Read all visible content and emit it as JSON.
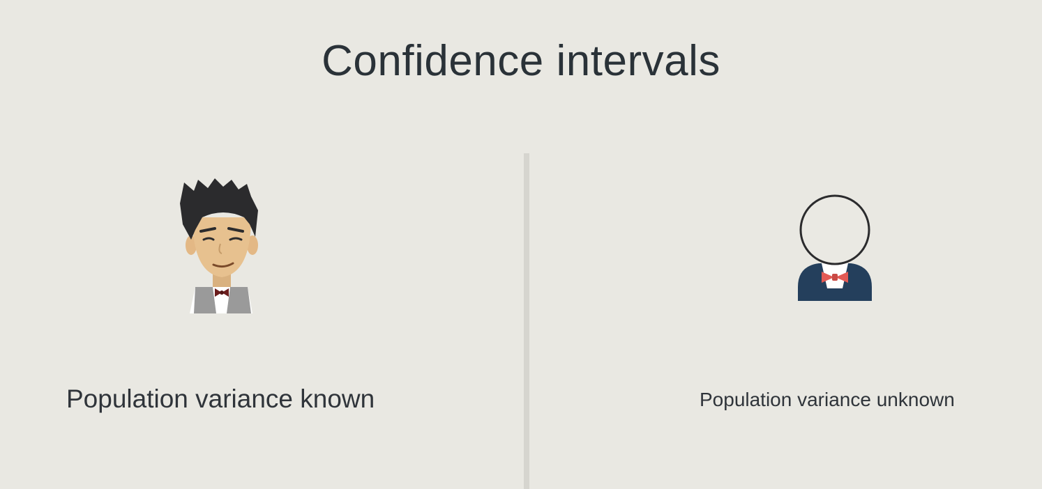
{
  "slide": {
    "title": "Confidence intervals",
    "left": {
      "label": "Population variance known",
      "icon": "person-with-bowtie-icon"
    },
    "right": {
      "label": "Population variance unknown",
      "icon": "unknown-person-with-bowtie-icon"
    }
  },
  "colors": {
    "background": "#e9e8e2",
    "text": "#2b3136",
    "divider": "#d6d5cf",
    "hair": "#2b2b2d",
    "skin": "#e7c18f",
    "vest": "#9a9a9a",
    "bowtie_known": "#6b1d1d",
    "suit": "#243f5c",
    "bowtie_unknown": "#e35a55"
  }
}
